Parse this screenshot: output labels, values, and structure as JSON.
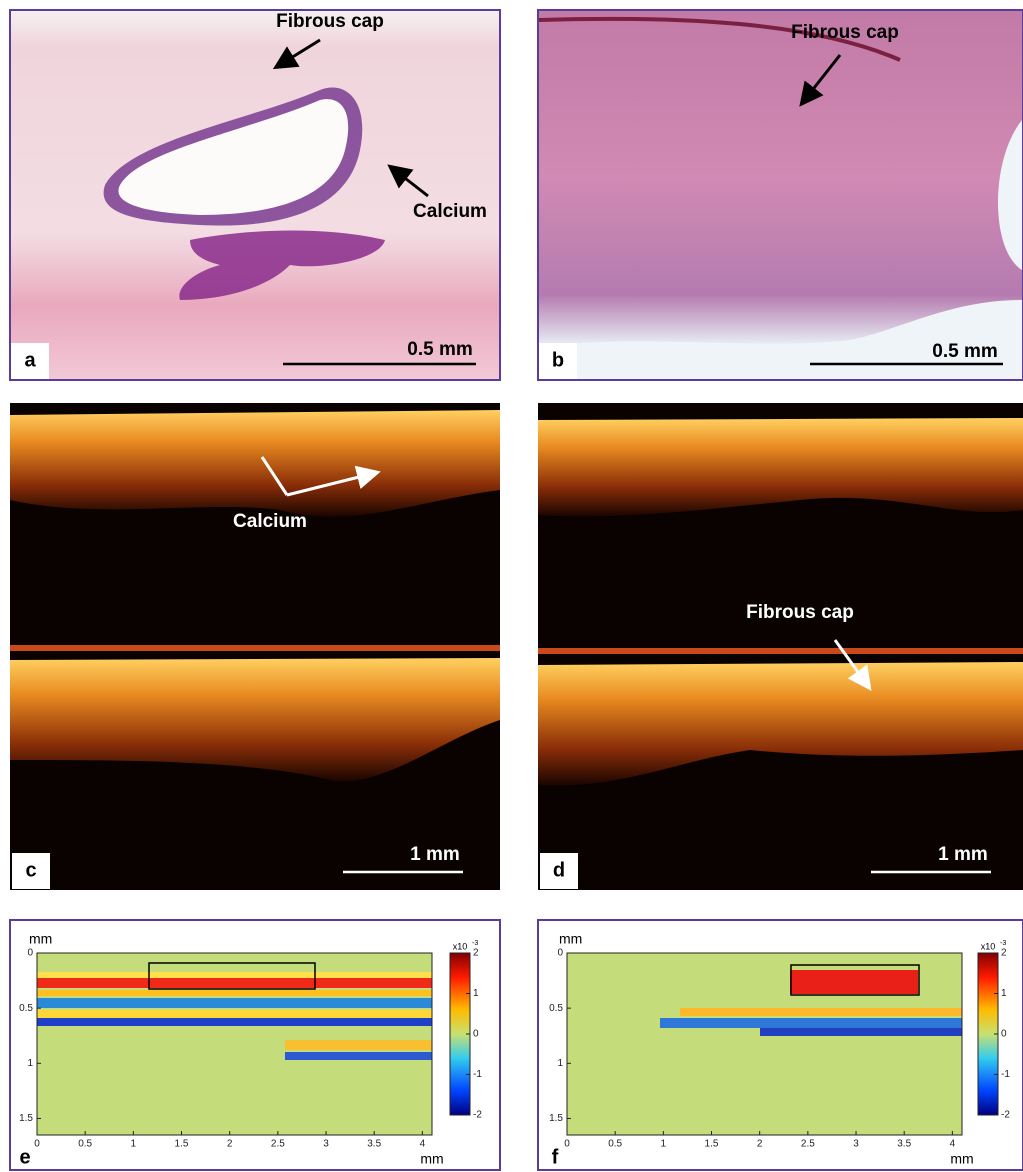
{
  "panels": [
    {
      "letter": "a",
      "annotations": [
        "Fibrous cap",
        "Calcium"
      ],
      "scale_bar": "0.5 mm"
    },
    {
      "letter": "b",
      "annotations": [
        "Fibrous cap"
      ],
      "scale_bar": "0.5 mm"
    },
    {
      "letter": "c",
      "annotations": [
        "Calcium"
      ],
      "scale_bar": "1 mm"
    },
    {
      "letter": "d",
      "annotations": [
        "Fibrous cap"
      ],
      "scale_bar": "1 mm"
    },
    {
      "letter": "e",
      "x_unit": "mm",
      "y_unit": "mm",
      "xlim": [
        0,
        4.1
      ],
      "xticks": [
        0,
        0.5,
        1,
        1.5,
        2,
        2.5,
        3,
        3.5,
        4
      ],
      "ylim": [
        0,
        1.65
      ],
      "yticks": [
        0,
        0.5,
        1,
        1.5
      ],
      "colorbar": {
        "lim": [
          -2,
          2
        ],
        "ticks": [
          -2,
          -1,
          0,
          1,
          2
        ],
        "multiplier": "x10",
        "exponent": "-3"
      }
    },
    {
      "letter": "f",
      "x_unit": "mm",
      "y_unit": "mm",
      "xlim": [
        0,
        4.1
      ],
      "xticks": [
        0,
        0.5,
        1,
        1.5,
        2,
        2.5,
        3,
        3.5,
        4
      ],
      "ylim": [
        0,
        1.65
      ],
      "yticks": [
        0,
        0.5,
        1,
        1.5
      ],
      "colorbar": {
        "lim": [
          -2,
          2
        ],
        "ticks": [
          -2,
          -1,
          0,
          1,
          2
        ],
        "multiplier": "x10",
        "exponent": "-3"
      }
    }
  ]
}
